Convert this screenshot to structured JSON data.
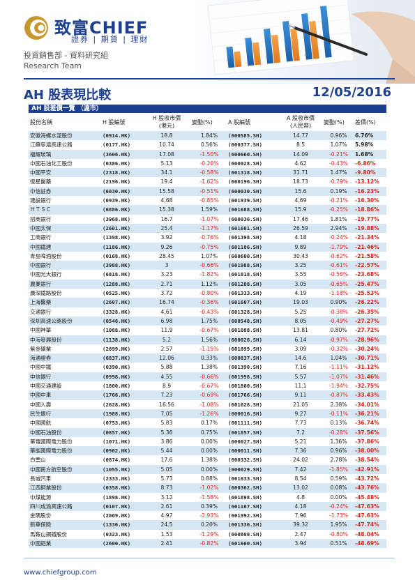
{
  "brand": {
    "name": "致富CHIEF",
    "subtitle": "證券 | 期貨 | 理財"
  },
  "department": {
    "line1": "投資銷售部 - 資料研究組",
    "line2": "Research Team"
  },
  "title": "AH 股表現比較",
  "date": "12/05/2016",
  "section_label": "AH 股差價一覽 （滬市）",
  "columns": [
    "股份名稱",
    "H 股編號",
    "H 股收市價\n(港元)",
    "變動(%)",
    "A 股編號",
    "A 股收市價\n(人民幣)",
    "變動(%)",
    "差價(%)"
  ],
  "rows": [
    [
      "安徽海螺水泥股份",
      "(0914.HK)",
      "18.8",
      "1.84%",
      "(600585.SH)",
      "14.77",
      "0.96%",
      "6.76%"
    ],
    [
      "江蘇寧滬高速公路",
      "(0177.HK)",
      "10.74",
      "0.56%",
      "(600377.SH)",
      "8.5",
      "1.07%",
      "5.98%"
    ],
    [
      "福耀玻璃",
      "(3606.HK)",
      "17.08",
      "-1.50%",
      "(600660.SH)",
      "14.09",
      "-0.21%",
      "1.68%"
    ],
    [
      "中國石油化工股份",
      "(0386.HK)",
      "5.13",
      "-0.20%",
      "(600028.SH)",
      "4.62",
      "-0.43%",
      "-6.86%"
    ],
    [
      "中國平安",
      "(2318.HK)",
      "34.1",
      "-0.58%",
      "(601318.SH)",
      "31.71",
      "1.47%",
      "-9.80%"
    ],
    [
      "復星醫藥",
      "(2196.HK)",
      "19.4",
      "-1.62%",
      "(600196.SH)",
      "18.73",
      "-0.79%",
      "-13.12%"
    ],
    [
      "中信証券",
      "(6030.HK)",
      "15.58",
      "-0.51%",
      "(600030.SH)",
      "15.6",
      "0.19%",
      "-16.23%"
    ],
    [
      "建設銀行",
      "(0939.HK)",
      "4.68",
      "-0.85%",
      "(601939.SH)",
      "4.69",
      "-0.21%",
      "-16.30%"
    ],
    [
      "ＨＴＳＣ",
      "(6886.HK)",
      "15.38",
      "1.59%",
      "(601688.SH)",
      "15.9",
      "-0.25%",
      "-18.86%"
    ],
    [
      "招商銀行",
      "(3968.HK)",
      "16.7",
      "-1.07%",
      "(600036.SH)",
      "17.46",
      "1.81%",
      "-19.77%"
    ],
    [
      "中國太保",
      "(2601.HK)",
      "25.4",
      "-1.17%",
      "(601601.SH)",
      "26.59",
      "2.94%",
      "-19.88%"
    ],
    [
      "工商銀行",
      "(1398.HK)",
      "3.92",
      "-0.76%",
      "(601398.SH)",
      "4.18",
      "-0.24%",
      "-21.34%"
    ],
    [
      "中國鐵建",
      "(1186.HK)",
      "9.26",
      "-0.75%",
      "(601186.SH)",
      "9.89",
      "-1.79%",
      "-21.46%"
    ],
    [
      "青島啤酒股份",
      "(0168.HK)",
      "28.45",
      "1.07%",
      "(600600.SH)",
      "30.43",
      "-0.62%",
      "-21.58%"
    ],
    [
      "中國銀行",
      "(3988.HK)",
      "3",
      "-0.66%",
      "(601988.SH)",
      "3.25",
      "-0.61%",
      "-22.57%"
    ],
    [
      "中國光大銀行",
      "(6818.HK)",
      "3.23",
      "-1.82%",
      "(601818.SH)",
      "3.55",
      "-0.56%",
      "-23.68%"
    ],
    [
      "農業銀行",
      "(1288.HK)",
      "2.71",
      "1.12%",
      "(601288.SH)",
      "3.05",
      "-0.65%",
      "-25.47%"
    ],
    [
      "廣深鐵路股份",
      "(0525.HK)",
      "3.72",
      "-0.80%",
      "(601333.SH)",
      "4.19",
      "-1.18%",
      "-25.53%"
    ],
    [
      "上海醫藥",
      "(2607.HK)",
      "16.74",
      "-0.36%",
      "(601607.SH)",
      "19.03",
      "0.90%",
      "-26.22%"
    ],
    [
      "交通銀行",
      "(3328.HK)",
      "4.61",
      "-0.43%",
      "(601328.SH)",
      "5.25",
      "-0.38%",
      "-26.35%"
    ],
    [
      "深圳高速公路股份",
      "(0548.HK)",
      "6.98",
      "1.75%",
      "(600548.SH)",
      "8.05",
      "-0.49%",
      "-27.27%"
    ],
    [
      "中國神華",
      "(1088.HK)",
      "11.9",
      "-0.67%",
      "(601088.SH)",
      "13.81",
      "0.80%",
      "-27.72%"
    ],
    [
      "中海發展股份",
      "(1138.HK)",
      "5.2",
      "1.56%",
      "(600026.SH)",
      "6.14",
      "-0.97%",
      "-28.96%"
    ],
    [
      "紫金礦業",
      "(2899.HK)",
      "2.57",
      "-1.15%",
      "(601899.SH)",
      "3.09",
      "-0.32%",
      "-30.24%"
    ],
    [
      "海通證券",
      "(6837.HK)",
      "12.06",
      "0.33%",
      "(600837.SH)",
      "14.6",
      "1.04%",
      "-30.71%"
    ],
    [
      "中國中鐵",
      "(0390.HK)",
      "5.88",
      "1.38%",
      "(601390.SH)",
      "7.16",
      "-1.11%",
      "-31.12%"
    ],
    [
      "中信銀行",
      "(0998.HK)",
      "4.55",
      "-0.66%",
      "(601998.SH)",
      "5.57",
      "-1.07%",
      "-31.46%"
    ],
    [
      "中國交通建設",
      "(1800.HK)",
      "8.9",
      "-0.67%",
      "(601800.SH)",
      "11.1",
      "-1.94%",
      "-32.75%"
    ],
    [
      "中國中車",
      "(1766.HK)",
      "7.23",
      "-0.69%",
      "(601766.SH)",
      "9.11",
      "-0.87%",
      "-33.43%"
    ],
    [
      "中國人壽",
      "(2628.HK)",
      "16.56",
      "-1.08%",
      "(601628.SH)",
      "21.05",
      "2.38%",
      "-34.01%"
    ],
    [
      "民生銀行",
      "(1988.HK)",
      "7.05",
      "-1.26%",
      "(600016.SH)",
      "9.27",
      "-0.11%",
      "-36.21%"
    ],
    [
      "中國國航",
      "(0753.HK)",
      "5.83",
      "0.17%",
      "(601111.SH)",
      "7.73",
      "0.13%",
      "-36.74%"
    ],
    [
      "中國石油股份",
      "(0857.HK)",
      "5.36",
      "0.75%",
      "(601857.SH)",
      "7.2",
      "-0.28%",
      "-37.56%"
    ],
    [
      "華電國際電力股份",
      "(1071.HK)",
      "3.86",
      "0.00%",
      "(600027.SH)",
      "5.21",
      "1.36%",
      "-37.86%"
    ],
    [
      "華能國際電力股份",
      "(0902.HK)",
      "5.44",
      "0.00%",
      "(600011.SH)",
      "7.36",
      "0.96%",
      "-38.00%"
    ],
    [
      "白雲山",
      "(0874.HK)",
      "17.6",
      "1.38%",
      "(600332.SH)",
      "24.02",
      "2.78%",
      "-38.54%"
    ],
    [
      "中國南方航空股份",
      "(1055.HK)",
      "5.05",
      "0.00%",
      "(600029.SH)",
      "7.42",
      "-1.85%",
      "-42.91%"
    ],
    [
      "長城汽車",
      "(2333.HK)",
      "5.73",
      "0.88%",
      "(601633.SH)",
      "8.54",
      "0.59%",
      "-43.72%"
    ],
    [
      "江西銅業股份",
      "(0358.HK)",
      "8.73",
      "-1.02%",
      "(600362.SH)",
      "13.02",
      "0.08%",
      "-43.76%"
    ],
    [
      "中煤能源",
      "(1898.HK)",
      "3.12",
      "-1.58%",
      "(601898.SH)",
      "4.8",
      "0.00%",
      "-45.48%"
    ],
    [
      "四川成渝高速公路",
      "(0107.HK)",
      "2.61",
      "0.39%",
      "(601107.SH)",
      "4.18",
      "-0.24%",
      "-47.63%"
    ],
    [
      "金隅股份",
      "(2009.HK)",
      "4.97",
      "-2.93%",
      "(601992.SH)",
      "7.96",
      "-1.73%",
      "-47.63%"
    ],
    [
      "新華保險",
      "(1336.HK)",
      "24.5",
      "0.20%",
      "(601336.SH)",
      "39.32",
      "1.95%",
      "-47.74%"
    ],
    [
      "馬鞍山鋼鐵股份",
      "(0323.HK)",
      "1.53",
      "-1.29%",
      "(600808.SH)",
      "2.47",
      "-0.80%",
      "-48.04%"
    ],
    [
      "中國鋁業",
      "(2600.HK)",
      "2.41",
      "-0.82%",
      "(601600.SH)",
      "3.94",
      "0.51%",
      "-48.69%"
    ]
  ],
  "website": "www.chiefgroup.com",
  "colors": {
    "brand_blue": "#1c3f8f",
    "stripe": "#d6e7f3",
    "negative": "#e0261b",
    "logo_gold": "#c8962e"
  }
}
